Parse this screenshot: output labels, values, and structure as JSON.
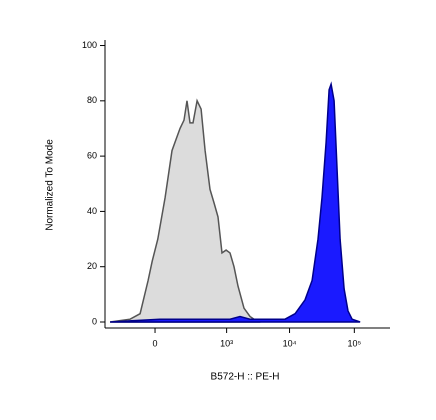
{
  "chart_data": {
    "type": "area",
    "x_label": "B572-H :: PE-H",
    "y_label": "Normalized To Mode",
    "xscale": "biex",
    "xlim": [
      -420,
      354000
    ],
    "xticks": [
      0,
      {
        "value": 1000,
        "label": "10³"
      },
      {
        "value": 10000,
        "label": "10⁴"
      },
      {
        "value": 100000,
        "label": "10⁵"
      }
    ],
    "ylim": [
      0,
      102
    ],
    "yticks": [
      0,
      20,
      40,
      60,
      80,
      100
    ],
    "series": [
      {
        "color": "#dcdcdc",
        "edge_color": "#555555",
        "x": [
          -337,
          -122,
          -60,
          -24,
          -9,
          9,
          37,
          71,
          95,
          122,
          154,
          181,
          211,
          244,
          295,
          353,
          420,
          517,
          610,
          715,
          836,
          980,
          1140,
          1325,
          1540,
          1925,
          2400,
          3220
        ],
        "values": [
          0,
          1,
          3,
          15,
          22,
          30,
          45,
          62,
          66,
          70,
          73,
          80,
          72,
          72,
          80,
          77,
          62,
          48,
          43,
          38,
          25,
          26,
          25,
          20,
          13,
          5,
          2,
          0
        ]
      },
      {
        "color": "#1a1aff",
        "edge_color": "#00008b",
        "x": [
          -337,
          16,
          1140,
          1660,
          2400,
          8500,
          12180,
          17380,
          22300,
          27600,
          31800,
          36700,
          40800,
          43800,
          48800,
          54200,
          60300,
          69500,
          80000,
          92300,
          122500
        ],
        "values": [
          0,
          1,
          1,
          2,
          1,
          1,
          3,
          8,
          15,
          30,
          45,
          65,
          84,
          86,
          80,
          55,
          30,
          12,
          4,
          1,
          0
        ]
      }
    ]
  }
}
